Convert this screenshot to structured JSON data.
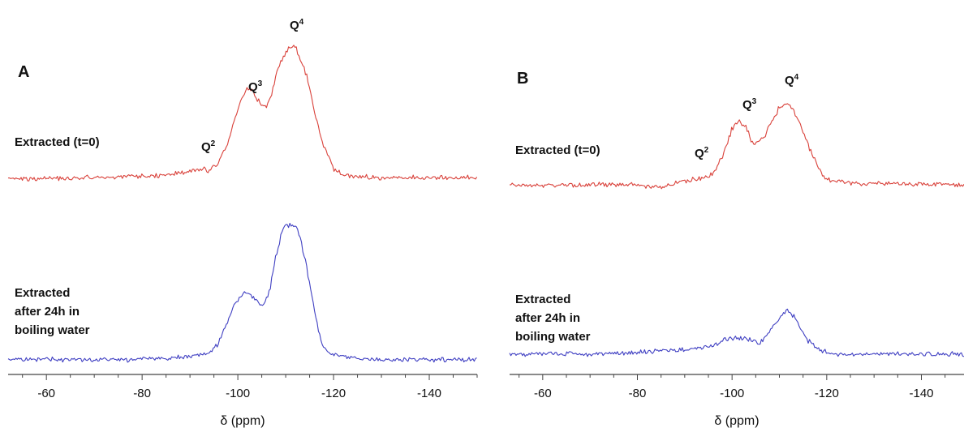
{
  "chart_data": [
    {
      "type": "line",
      "panel_label": "A",
      "xlabel": "δ (ppm)",
      "xlim": [
        -52,
        -150
      ],
      "xticks": [
        -60,
        -80,
        -100,
        -120,
        -140
      ],
      "xtick_labels": [
        "-60",
        "-80",
        "-100",
        "-120",
        "-140"
      ],
      "grid": false,
      "peak_labels": [
        {
          "label": "Q",
          "superscript": "2",
          "x": -92
        },
        {
          "label": "Q",
          "superscript": "3",
          "x": -102
        },
        {
          "label": "Q",
          "superscript": "4",
          "x": -111
        }
      ],
      "series": [
        {
          "name_lines": [
            "Extracted (t=0)"
          ],
          "color": "#d9413a",
          "x": [
            -52,
            -60,
            -70,
            -80,
            -85,
            -88,
            -90,
            -92,
            -94,
            -96,
            -98,
            -100,
            -101,
            -102,
            -103,
            -104,
            -105,
            -106,
            -107,
            -108,
            -109,
            -110,
            -111,
            -112,
            -113,
            -114,
            -115,
            -116,
            -118,
            -120,
            -122,
            -125,
            -130,
            -140,
            -150
          ],
          "y": [
            0.02,
            0.02,
            0.03,
            0.04,
            0.05,
            0.07,
            0.08,
            0.1,
            0.08,
            0.14,
            0.3,
            0.54,
            0.65,
            0.7,
            0.69,
            0.62,
            0.56,
            0.57,
            0.66,
            0.79,
            0.89,
            0.96,
            1.0,
            0.99,
            0.93,
            0.84,
            0.71,
            0.52,
            0.26,
            0.1,
            0.05,
            0.04,
            0.03,
            0.03,
            0.03
          ]
        },
        {
          "name_lines": [
            "Extracted",
            "after 24h in",
            "boiling water"
          ],
          "color": "#3f3fc2",
          "x": [
            -52,
            -60,
            -70,
            -80,
            -90,
            -94,
            -96,
            -98,
            -99,
            -100,
            -101,
            -102,
            -103,
            -104,
            -105,
            -106,
            -107,
            -108,
            -109,
            -110,
            -111,
            -112,
            -113,
            -114,
            -115,
            -116,
            -117,
            -118,
            -120,
            -125,
            -130,
            -140,
            -150
          ],
          "y": [
            0.02,
            0.02,
            0.02,
            0.02,
            0.04,
            0.07,
            0.14,
            0.3,
            0.4,
            0.45,
            0.5,
            0.51,
            0.48,
            0.44,
            0.41,
            0.45,
            0.58,
            0.77,
            0.92,
            1.0,
            1.0,
            0.98,
            0.9,
            0.76,
            0.58,
            0.38,
            0.22,
            0.1,
            0.05,
            0.03,
            0.02,
            0.02,
            0.02
          ]
        }
      ]
    },
    {
      "type": "line",
      "panel_label": "B",
      "xlabel": "δ (ppm)",
      "xlim": [
        -53,
        -149
      ],
      "xticks": [
        -60,
        -80,
        -100,
        -120,
        -140
      ],
      "xtick_labels": [
        "-60",
        "-80",
        "-100",
        "-120",
        "-140"
      ],
      "grid": false,
      "peak_labels": [
        {
          "label": "Q",
          "superscript": "2",
          "x": -92
        },
        {
          "label": "Q",
          "superscript": "3",
          "x": -102
        },
        {
          "label": "Q",
          "superscript": "4",
          "x": -111
        }
      ],
      "series": [
        {
          "name_lines": [
            "Extracted (t=0)"
          ],
          "color": "#d9413a",
          "x": [
            -53,
            -60,
            -70,
            -80,
            -85,
            -90,
            -94,
            -96,
            -98,
            -100,
            -101,
            -102,
            -103,
            -104,
            -105,
            -106,
            -107,
            -108,
            -109,
            -110,
            -111,
            -112,
            -113,
            -114,
            -115,
            -116,
            -118,
            -120,
            -125,
            -130,
            -140,
            -149
          ],
          "y": [
            0.0,
            0.0,
            0.01,
            0.01,
            -0.02,
            0.05,
            0.08,
            0.12,
            0.3,
            0.58,
            0.66,
            0.65,
            0.6,
            0.47,
            0.44,
            0.47,
            0.52,
            0.62,
            0.72,
            0.8,
            0.85,
            0.84,
            0.78,
            0.68,
            0.55,
            0.42,
            0.2,
            0.06,
            0.02,
            0.02,
            0.02,
            0.01
          ]
        },
        {
          "name_lines": [
            "Extracted",
            "after 24h in",
            "boiling water"
          ],
          "color": "#3f3fc2",
          "x": [
            -53,
            -60,
            -70,
            -80,
            -90,
            -95,
            -100,
            -102,
            -104,
            -106,
            -108,
            -110,
            -111,
            -112,
            -113,
            -114,
            -115,
            -116,
            -118,
            -120,
            -125,
            -130,
            -140,
            -149
          ],
          "y": [
            0.02,
            0.02,
            0.02,
            0.03,
            0.05,
            0.07,
            0.14,
            0.13,
            0.12,
            0.1,
            0.18,
            0.28,
            0.32,
            0.33,
            0.3,
            0.24,
            0.17,
            0.12,
            0.06,
            0.03,
            0.01,
            0.02,
            0.02,
            0.02
          ]
        }
      ]
    }
  ]
}
